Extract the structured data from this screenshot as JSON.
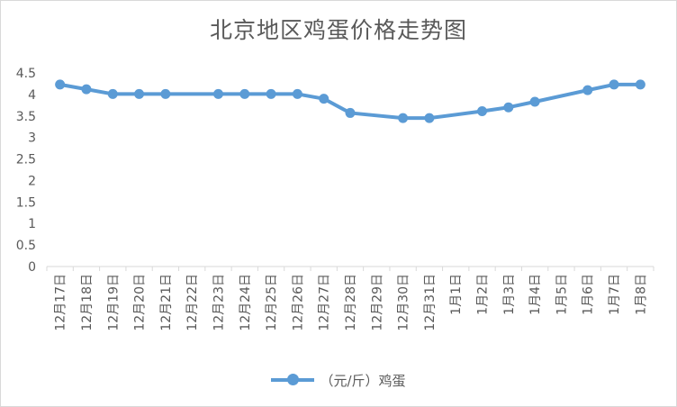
{
  "chart_data": {
    "type": "line",
    "title": "北京地区鸡蛋价格走势图",
    "xlabel": "",
    "ylabel": "",
    "ylim": [
      0,
      4.5
    ],
    "yticks": [
      "0",
      "0.5",
      "1",
      "1.5",
      "2",
      "2.5",
      "3",
      "3.5",
      "4",
      "4.5"
    ],
    "categories": [
      "12月17日",
      "12月18日",
      "12月19日",
      "12月20日",
      "12月21日",
      "12月22日",
      "12月23日",
      "12月24日",
      "12月25日",
      "12月26日",
      "12月27日",
      "12月28日",
      "12月29日",
      "12月30日",
      "12月31日",
      "1月1日",
      "1月2日",
      "1月3日",
      "1月4日",
      "1月5日",
      "1月6日",
      "1月7日",
      "1月8日"
    ],
    "series": [
      {
        "name": "（元/斤）鸡蛋",
        "color": "#5b9bd5",
        "values": [
          4.23,
          4.12,
          4.01,
          4.01,
          4.01,
          null,
          4.01,
          4.01,
          4.01,
          4.01,
          3.9,
          3.57,
          null,
          3.45,
          3.45,
          null,
          3.61,
          3.7,
          3.83,
          null,
          4.1,
          4.23,
          4.23
        ]
      }
    ],
    "grid": false,
    "legend_position": "bottom"
  }
}
